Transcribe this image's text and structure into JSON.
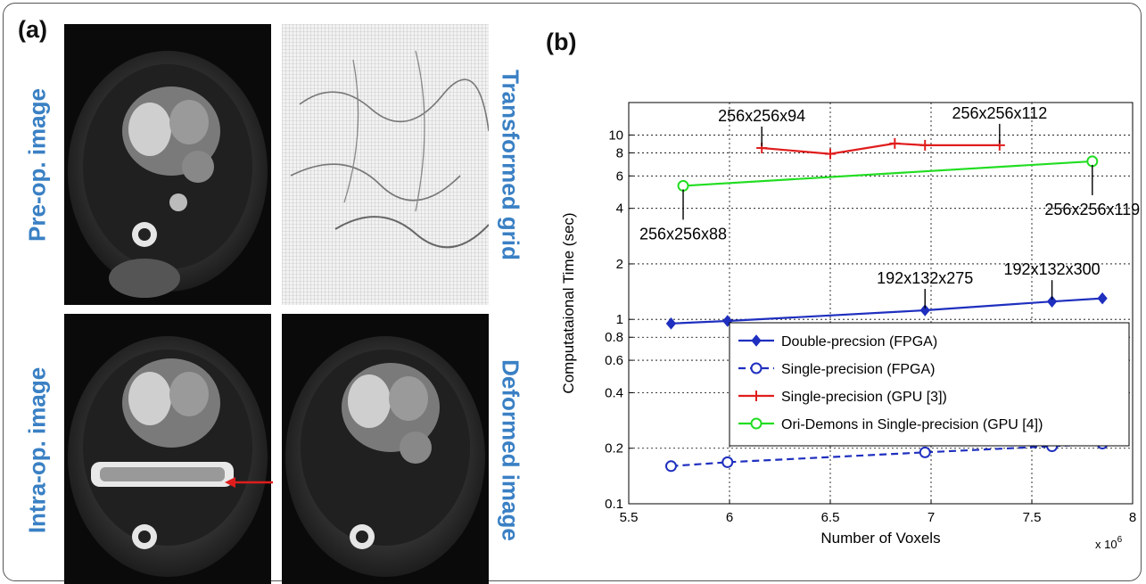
{
  "panel_a": {
    "label": "(a)",
    "labels": {
      "pre_op": "Pre-op. image",
      "transformed_grid": "Transformed grid",
      "intra_op": "Intra-op. image",
      "deformed": "Deformed image"
    }
  },
  "panel_b": {
    "label": "(b)"
  },
  "chart_data": {
    "type": "line",
    "xlabel": "Number of Voxels",
    "ylabel": "Computataional Time (sec)",
    "x_multiplier": "x 10",
    "x_multiplier_exp": "6",
    "xlim": [
      5.5,
      8
    ],
    "ylim": [
      0.1,
      15
    ],
    "yscale": "log",
    "grid": true,
    "xticks": [
      "5.5",
      "6",
      "6.5",
      "7",
      "7.5",
      "8"
    ],
    "yticks": [
      "0.1",
      "0.2",
      "0.4",
      "0.6",
      "0.8",
      "1",
      "2",
      "4",
      "6",
      "8",
      "10"
    ],
    "legend_position": "center-right",
    "series": [
      {
        "name": "Double-precsion (FPGA)",
        "color": "#1f2fbf",
        "marker": "diamond",
        "dash": false,
        "x": [
          5.71,
          5.99,
          6.97,
          7.6,
          7.85
        ],
        "y": [
          0.95,
          0.98,
          1.12,
          1.25,
          1.3
        ]
      },
      {
        "name": "Single-precision (FPGA)",
        "color": "#1f2fbf",
        "marker": "circle",
        "dash": true,
        "x": [
          5.71,
          5.99,
          6.97,
          7.6,
          7.85
        ],
        "y": [
          0.16,
          0.168,
          0.19,
          0.205,
          0.212
        ]
      },
      {
        "name": "Single-precision (GPU [3])",
        "color": "#e01d1d",
        "marker": "plus",
        "dash": false,
        "x": [
          6.16,
          6.5,
          6.82,
          6.97,
          7.34
        ],
        "y": [
          8.5,
          7.9,
          9.0,
          8.8,
          8.8
        ]
      },
      {
        "name": "Ori-Demons in Single-precision (GPU [4])",
        "color": "#22dd22",
        "marker": "circle",
        "dash": false,
        "x": [
          5.77,
          7.8
        ],
        "y": [
          5.3,
          7.2
        ]
      }
    ],
    "annotations": [
      {
        "text": "256x256x94",
        "x": 6.16,
        "y": 8.5,
        "where": "above"
      },
      {
        "text": "256x256x112",
        "x": 7.34,
        "y": 8.8,
        "where": "above"
      },
      {
        "text": "256x256x88",
        "x": 5.77,
        "y": 5.3,
        "where": "below"
      },
      {
        "text": "256x256x119",
        "x": 7.8,
        "y": 7.2,
        "where": "below"
      },
      {
        "text": "192x132x275",
        "x": 6.97,
        "y": 1.12,
        "where": "above"
      },
      {
        "text": "192x132x300",
        "x": 7.6,
        "y": 1.25,
        "where": "above"
      }
    ]
  }
}
